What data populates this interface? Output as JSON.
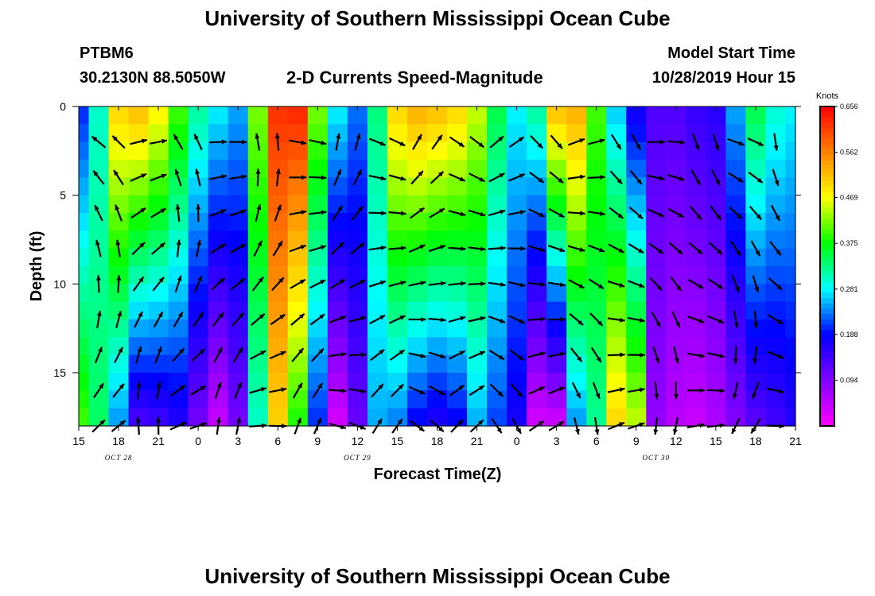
{
  "header": {
    "title_top": "University of Southern Mississippi Ocean Cube",
    "title_bottom": "University of Southern Mississippi Ocean Cube",
    "station": "PTBM6",
    "coords": "30.2130N 88.5050W",
    "model_start_label": "Model Start Time",
    "model_start_value": "10/28/2019 Hour 15"
  },
  "chart_data": {
    "type": "heatmap",
    "title": "2-D Currents Speed-Magnitude",
    "xlabel": "Forecast Time(Z)",
    "ylabel": "Depth (ft)",
    "x_tick_labels": [
      "15",
      "18",
      "21",
      "0",
      "3",
      "6",
      "9",
      "12",
      "15",
      "18",
      "21",
      "0",
      "3",
      "6",
      "9",
      "12",
      "15",
      "18",
      "21"
    ],
    "x_hours": [
      0,
      54
    ],
    "y_ticks": [
      0,
      5,
      10,
      15
    ],
    "ylim": [
      0,
      18
    ],
    "date_labels": [
      {
        "text": "OCT 28",
        "hour": 3
      },
      {
        "text": "OCT 29",
        "hour": 21
      },
      {
        "text": "OCT 30",
        "hour": 43.5
      }
    ],
    "colorbar": {
      "unit": "Knots",
      "ticks": [
        "0.656",
        "0.562",
        "0.469",
        "0.375",
        "0.281",
        "0.188",
        "0.094"
      ],
      "vmin": 0.0,
      "vmax": 0.656,
      "colors": [
        "#ff00ff",
        "#8000ff",
        "#0000ff",
        "#00ffff",
        "#00ff00",
        "#ffff00",
        "#ff8000",
        "#ff0000"
      ]
    },
    "time_hours": [
      0,
      1.5,
      3,
      4.5,
      6,
      7.5,
      9,
      10.5,
      12,
      13.5,
      15,
      16.5,
      18,
      19.5,
      21,
      22.5,
      24,
      25.5,
      27,
      28.5,
      30,
      31.5,
      33,
      34.5,
      36,
      37.5,
      39,
      40.5,
      42,
      43.5,
      45,
      46.5,
      48,
      49.5,
      51,
      52.5,
      54
    ],
    "surface_speed_knots": [
      0.2,
      0.3,
      0.5,
      0.52,
      0.48,
      0.4,
      0.32,
      0.28,
      0.25,
      0.42,
      0.62,
      0.63,
      0.42,
      0.28,
      0.23,
      0.33,
      0.5,
      0.53,
      0.52,
      0.5,
      0.45,
      0.35,
      0.28,
      0.32,
      0.52,
      0.53,
      0.4,
      0.26,
      0.17,
      0.13,
      0.13,
      0.15,
      0.16,
      0.25,
      0.35,
      0.3,
      0.28
    ],
    "bottom_speed_knots": [
      0.4,
      0.34,
      0.24,
      0.13,
      0.14,
      0.16,
      0.1,
      0.04,
      0.1,
      0.3,
      0.5,
      0.38,
      0.2,
      0.03,
      0.11,
      0.25,
      0.23,
      0.18,
      0.16,
      0.18,
      0.25,
      0.21,
      0.17,
      0.03,
      0.03,
      0.24,
      0.32,
      0.5,
      0.45,
      0.08,
      0.05,
      0.04,
      0.06,
      0.09,
      0.12,
      0.14,
      0.16
    ],
    "vector_note": "Arrows indicate current direction at each time/depth sample"
  }
}
